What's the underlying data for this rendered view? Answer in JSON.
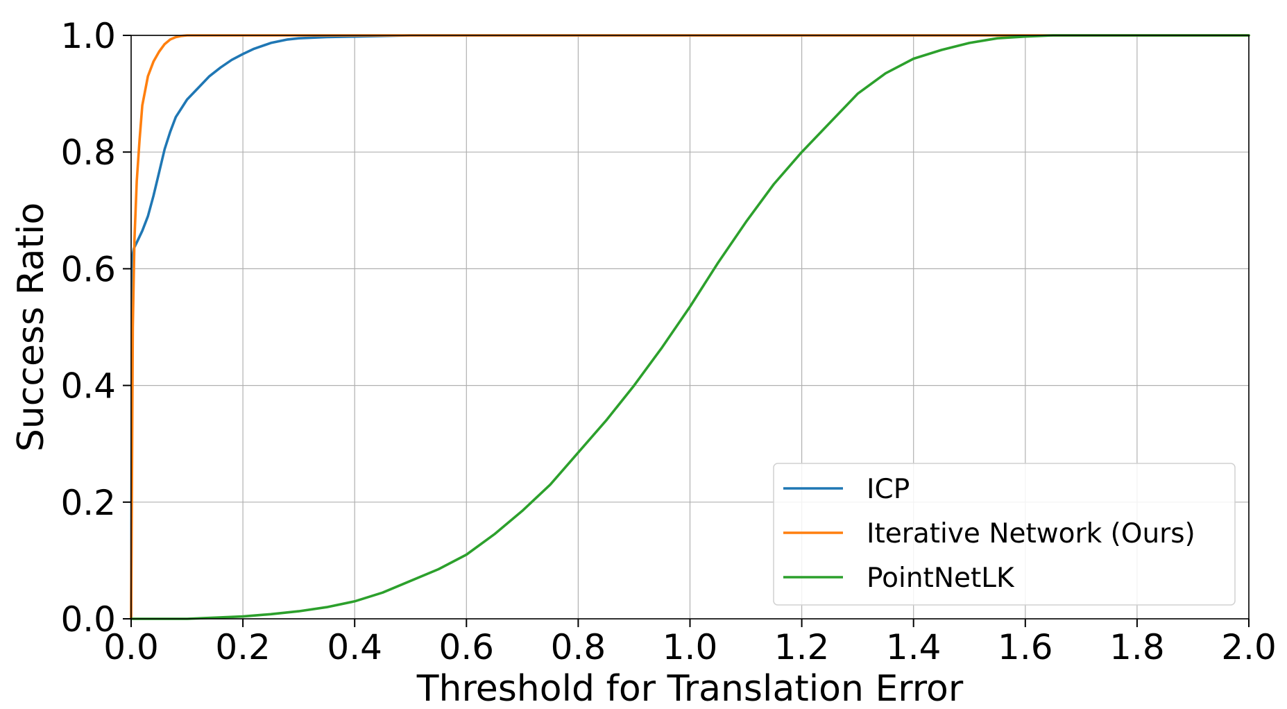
{
  "chart_data": {
    "type": "line",
    "title": "",
    "xlabel": "Threshold for Translation Error",
    "ylabel": "Success Ratio",
    "xlim": [
      0.0,
      2.0
    ],
    "ylim": [
      0.0,
      1.0
    ],
    "xticks": [
      0.0,
      0.2,
      0.4,
      0.6,
      0.8,
      1.0,
      1.2,
      1.4,
      1.6,
      1.8,
      2.0
    ],
    "xtick_labels": [
      "0.0",
      "0.2",
      "0.4",
      "0.6",
      "0.8",
      "1.0",
      "1.2",
      "1.4",
      "1.6",
      "1.8",
      "2.0"
    ],
    "yticks": [
      0.0,
      0.2,
      0.4,
      0.6,
      0.8,
      1.0
    ],
    "ytick_labels": [
      "0.0",
      "0.2",
      "0.4",
      "0.6",
      "0.8",
      "1.0"
    ],
    "grid": true,
    "legend_position": "lower-right",
    "series": [
      {
        "name": "ICP",
        "color": "#1f77b4",
        "x": [
          0.0,
          0.002,
          0.005,
          0.01,
          0.02,
          0.03,
          0.04,
          0.05,
          0.06,
          0.07,
          0.08,
          0.09,
          0.1,
          0.12,
          0.14,
          0.16,
          0.18,
          0.2,
          0.22,
          0.25,
          0.28,
          0.3,
          0.35,
          0.4,
          0.5,
          0.6,
          2.0
        ],
        "y": [
          0.0,
          0.62,
          0.635,
          0.645,
          0.665,
          0.69,
          0.725,
          0.765,
          0.805,
          0.835,
          0.86,
          0.875,
          0.89,
          0.91,
          0.93,
          0.945,
          0.958,
          0.968,
          0.977,
          0.987,
          0.993,
          0.995,
          0.997,
          0.998,
          1.0,
          1.0,
          1.0
        ]
      },
      {
        "name": "Iterative Network (Ours)",
        "color": "#ff7f0e",
        "x": [
          0.0,
          0.003,
          0.006,
          0.01,
          0.015,
          0.02,
          0.03,
          0.04,
          0.05,
          0.06,
          0.07,
          0.08,
          0.09,
          0.1,
          0.12,
          2.0
        ],
        "y": [
          0.0,
          0.5,
          0.65,
          0.75,
          0.82,
          0.88,
          0.93,
          0.955,
          0.972,
          0.985,
          0.993,
          0.997,
          0.999,
          1.0,
          1.0,
          1.0
        ]
      },
      {
        "name": "PointNetLK",
        "color": "#2ca02c",
        "x": [
          0.0,
          0.1,
          0.15,
          0.2,
          0.25,
          0.3,
          0.35,
          0.4,
          0.45,
          0.5,
          0.55,
          0.6,
          0.65,
          0.7,
          0.75,
          0.8,
          0.85,
          0.9,
          0.95,
          1.0,
          1.05,
          1.1,
          1.15,
          1.2,
          1.25,
          1.3,
          1.35,
          1.4,
          1.45,
          1.5,
          1.55,
          1.6,
          1.65,
          1.7,
          2.0
        ],
        "y": [
          0.0,
          0.0,
          0.002,
          0.004,
          0.008,
          0.013,
          0.02,
          0.03,
          0.045,
          0.065,
          0.085,
          0.11,
          0.145,
          0.185,
          0.23,
          0.285,
          0.34,
          0.4,
          0.465,
          0.535,
          0.61,
          0.68,
          0.745,
          0.8,
          0.85,
          0.9,
          0.935,
          0.96,
          0.975,
          0.987,
          0.995,
          0.998,
          1.0,
          1.0,
          1.0
        ]
      }
    ]
  }
}
